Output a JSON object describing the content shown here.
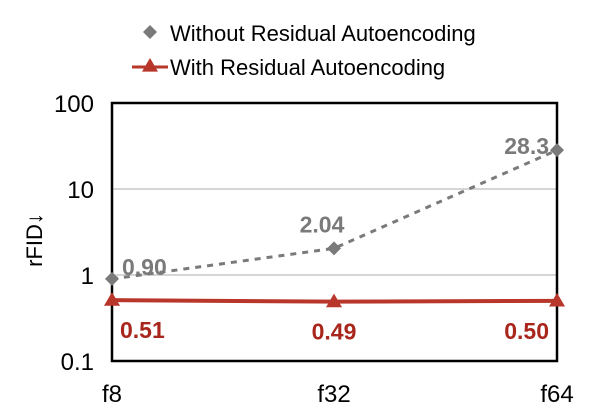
{
  "chart_data": {
    "type": "line",
    "categories": [
      "f8",
      "f32",
      "f64"
    ],
    "ylabel": "rFID↓",
    "yscale": "log",
    "ylim": [
      0.1,
      100
    ],
    "yticks": [
      {
        "value": 0.1,
        "label": "0.1"
      },
      {
        "value": 1,
        "label": "1"
      },
      {
        "value": 10,
        "label": "10"
      },
      {
        "value": 100,
        "label": "100"
      }
    ],
    "grid": true,
    "legend_position": "top",
    "series": [
      {
        "name": "Without Residual Autoencoding",
        "values": [
          0.9,
          2.04,
          28.3
        ],
        "labels": [
          "0.90",
          "2.04",
          "28.3"
        ],
        "color": "#7a7a7a",
        "label_color": "#7a7a7a",
        "marker": "diamond",
        "line": "dashed"
      },
      {
        "name": "With Residual Autoencoding",
        "values": [
          0.51,
          0.49,
          0.5
        ],
        "labels": [
          "0.51",
          "0.49",
          "0.50"
        ],
        "color": "#b8362a",
        "label_color": "#a8261c",
        "marker": "triangle",
        "line": "solid"
      }
    ]
  }
}
